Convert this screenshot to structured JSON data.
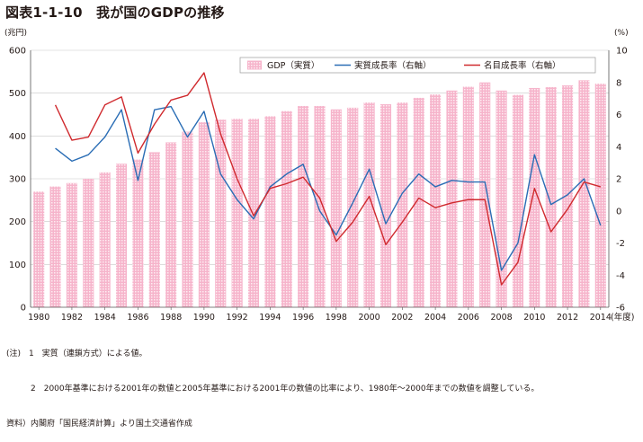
{
  "figure": {
    "title": "図表1-1-10　我が国のGDPの推移",
    "notes": [
      "(注)　1　実質（連鎖方式）による値。",
      "　　　2　2000年基準における2001年の数値と2005年基準における2001年の数値の比率により、1980年〜2000年までの数値を調整している。",
      "資料）内閣府「国民経済計算」より国土交通省作成"
    ]
  },
  "chart_data": {
    "type": "bar",
    "title": "",
    "left_axis_unit": "(兆円)",
    "right_axis_unit": "(%)",
    "x_axis_suffix": "(年度)",
    "ylim_left": [
      0,
      600
    ],
    "ylim_right": [
      -6,
      10
    ],
    "left_ticks": [
      0,
      100,
      200,
      300,
      400,
      500,
      600
    ],
    "right_ticks": [
      -6,
      -4,
      -2,
      0,
      2,
      4,
      6,
      8,
      10
    ],
    "x_tick_labels": [
      "1980",
      "1982",
      "1984",
      "1986",
      "1988",
      "1990",
      "1992",
      "1994",
      "1996",
      "1998",
      "2000",
      "2002",
      "2004",
      "2006",
      "2008",
      "2010",
      "2012",
      "2014"
    ],
    "years": [
      1980,
      1981,
      1982,
      1983,
      1984,
      1985,
      1986,
      1987,
      1988,
      1989,
      1990,
      1991,
      1992,
      1993,
      1994,
      1995,
      1996,
      1997,
      1998,
      1999,
      2000,
      2001,
      2002,
      2003,
      2004,
      2005,
      2006,
      2007,
      2008,
      2009,
      2010,
      2011,
      2012,
      2013,
      2014
    ],
    "grid": true,
    "legend_position": "top-right",
    "series": [
      {
        "name": "GDP（実質）",
        "kind": "bar",
        "axis": "left",
        "color": "#f4a9c2",
        "values": [
          270,
          282,
          290,
          300,
          315,
          335,
          345,
          362,
          385,
          410,
          432,
          438,
          440,
          440,
          446,
          458,
          470,
          470,
          462,
          466,
          478,
          474,
          478,
          489,
          497,
          506,
          515,
          525,
          506,
          496,
          512,
          514,
          518,
          530,
          522
        ]
      },
      {
        "name": "実質成長率（右軸）",
        "kind": "line",
        "axis": "right",
        "color": "#2a6db5",
        "values": [
          null,
          3.9,
          3.1,
          3.5,
          4.6,
          6.3,
          1.9,
          6.3,
          6.5,
          4.6,
          6.2,
          2.3,
          0.7,
          -0.5,
          1.5,
          2.3,
          2.9,
          0.0,
          -1.5,
          0.5,
          2.6,
          -0.8,
          1.1,
          2.3,
          1.5,
          1.9,
          1.8,
          1.8,
          -3.7,
          -2.0,
          3.5,
          0.4,
          1.0,
          2.0,
          -0.9
        ]
      },
      {
        "name": "名目成長率（右軸）",
        "kind": "line",
        "axis": "right",
        "color": "#d02a2e",
        "values": [
          null,
          6.6,
          4.4,
          4.6,
          6.6,
          7.1,
          3.6,
          5.4,
          6.9,
          7.2,
          8.6,
          4.8,
          2.0,
          -0.3,
          1.4,
          1.7,
          2.1,
          0.8,
          -1.9,
          -0.7,
          0.9,
          -2.1,
          -0.7,
          0.8,
          0.2,
          0.5,
          0.7,
          0.7,
          -4.6,
          -3.2,
          1.4,
          -1.3,
          0.1,
          1.8,
          1.5
        ]
      }
    ]
  }
}
